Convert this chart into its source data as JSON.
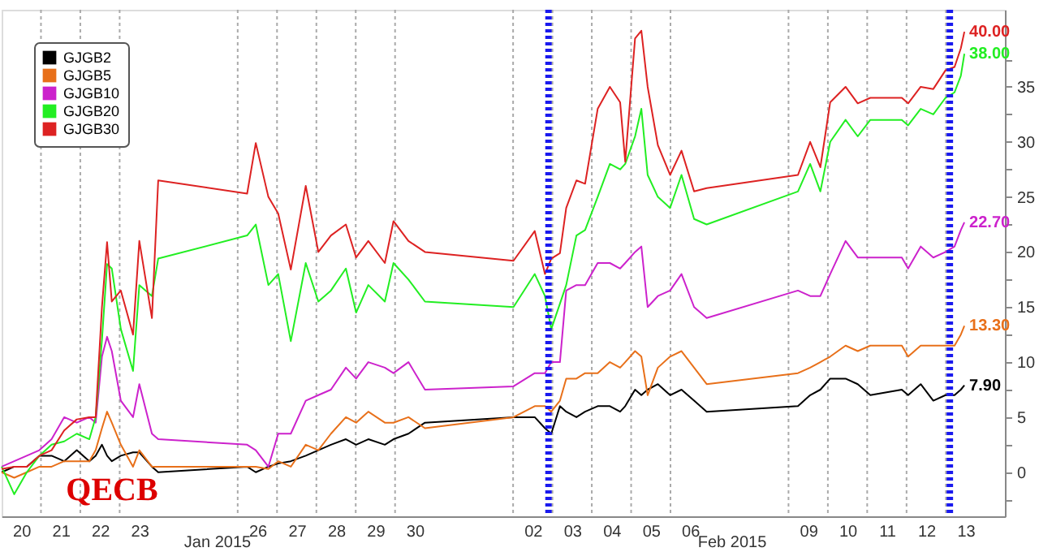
{
  "chart_data": {
    "type": "line",
    "x": [
      "2015-01-20T00:00",
      "2015-01-20T07:41",
      "2015-01-20T15:22",
      "2015-01-20T23:02",
      "2015-01-21T06:29",
      "2015-01-21T14:10",
      "2015-01-21T21:50",
      "2015-01-22T05:31",
      "2015-01-22T09:22",
      "2015-01-22T13:12",
      "2015-01-22T16:19",
      "2015-01-22T19:12",
      "2015-01-23T00:43",
      "2015-01-23T08:10",
      "2015-01-23T12:00",
      "2015-01-23T19:41",
      "2015-01-23T23:31",
      "2015-01-26T05:46",
      "2015-01-26T11:02",
      "2015-01-26T18:43",
      "2015-01-27T00:43",
      "2015-01-27T08:24",
      "2015-01-27T17:31",
      "2015-01-28T01:12",
      "2015-01-28T08:53",
      "2015-01-28T18:00",
      "2015-01-29T00:14",
      "2015-01-29T07:41",
      "2015-01-29T17:46",
      "2015-01-29T23:02",
      "2015-01-30T08:10",
      "2015-01-30T18:14",
      "2015-02-02T00:14",
      "2015-02-02T13:12",
      "2015-02-02T19:26",
      "2015-02-02T23:17",
      "2015-02-03T04:34",
      "2015-02-03T08:24",
      "2015-02-03T14:38",
      "2015-02-03T19:55",
      "2015-02-04T03:36",
      "2015-02-04T11:02",
      "2015-02-04T17:17",
      "2015-02-04T20:24",
      "2015-02-05T02:24",
      "2015-02-05T06:14",
      "2015-02-05T10:05",
      "2015-02-05T16:19",
      "2015-02-05T23:46",
      "2015-02-06T06:43",
      "2015-02-06T14:24",
      "2015-02-06T22:05",
      "2015-02-09T05:46",
      "2015-02-09T13:12",
      "2015-02-09T19:26",
      "2015-02-10T01:26",
      "2015-02-10T10:48",
      "2015-02-10T18:14",
      "2015-02-11T01:55",
      "2015-02-11T21:07",
      "2015-02-12T00:58",
      "2015-02-12T08:38",
      "2015-02-12T16:19",
      "2015-02-12T23:46",
      "2015-02-13T05:17",
      "2015-02-13T09:07",
      "2015-02-13T11:17"
    ],
    "series": [
      {
        "name": "GJGB2",
        "color": "#000000",
        "values": [
          0,
          0.5,
          0.5,
          1.5,
          1.5,
          1,
          2,
          1,
          1.5,
          2.5,
          1.5,
          1,
          1.5,
          1.8,
          1.8,
          0.5,
          0,
          0.5,
          0,
          0.5,
          0.8,
          1,
          1.5,
          2,
          2.5,
          3,
          2.5,
          3,
          2.5,
          3,
          3.5,
          4.5,
          5,
          5,
          4,
          3.5,
          6,
          5.5,
          5,
          5.5,
          6,
          6,
          5.5,
          6,
          7.5,
          7,
          7.5,
          8,
          7,
          7.5,
          6.5,
          5.5,
          6,
          7,
          7.5,
          8.5,
          8.5,
          8,
          7,
          7.5,
          7,
          8,
          6.5,
          7,
          7,
          7.5,
          7.9
        ],
        "value_labels": [
          null,
          null,
          null,
          null,
          null,
          null,
          null,
          null,
          null,
          null,
          null,
          null,
          null,
          null,
          null,
          null,
          null,
          null,
          null,
          null,
          null,
          null,
          null,
          null,
          null,
          null,
          null,
          null,
          null,
          null,
          null,
          null,
          null,
          null,
          null,
          null,
          null,
          null,
          null,
          null,
          null,
          null,
          null,
          null,
          null,
          null,
          null,
          null,
          null,
          null,
          null,
          null,
          null,
          null,
          null,
          null,
          null,
          null,
          null,
          null,
          null,
          null,
          null,
          null,
          null,
          null,
          "7.90"
        ]
      },
      {
        "name": "GJGB5",
        "color": "#e8701a",
        "values": [
          0,
          -0.5,
          0,
          0.5,
          0.5,
          1,
          1,
          1,
          2,
          4,
          5.5,
          4.5,
          2.5,
          0.5,
          2,
          0.5,
          0.5,
          0.5,
          0.5,
          0.3,
          1,
          0.5,
          2.5,
          2,
          3.5,
          5,
          4.5,
          5.5,
          4.5,
          4.5,
          5,
          4,
          5,
          6,
          6,
          5.5,
          6.5,
          8.5,
          8.5,
          9,
          9,
          10,
          9.5,
          10,
          11,
          10.5,
          7,
          9.5,
          10.5,
          11,
          9.5,
          8,
          9,
          9.5,
          10,
          10.5,
          11.5,
          11,
          11.5,
          11.5,
          10.5,
          11.5,
          11.5,
          11.5,
          11.5,
          12.5,
          13.3
        ],
        "value_labels": [
          null,
          null,
          null,
          null,
          null,
          null,
          null,
          null,
          null,
          null,
          null,
          null,
          null,
          null,
          null,
          null,
          null,
          null,
          null,
          null,
          null,
          null,
          null,
          null,
          null,
          null,
          null,
          null,
          null,
          null,
          null,
          null,
          null,
          null,
          null,
          null,
          null,
          null,
          null,
          null,
          null,
          null,
          null,
          null,
          null,
          null,
          null,
          null,
          null,
          null,
          null,
          null,
          null,
          null,
          null,
          null,
          null,
          null,
          null,
          null,
          null,
          null,
          null,
          null,
          null,
          null,
          "13.30"
        ]
      },
      {
        "name": "GJGB10",
        "color": "#cc22cc",
        "values": [
          0.5,
          1,
          1.5,
          2,
          3,
          5,
          4.5,
          5,
          4.5,
          10.5,
          12.3,
          11,
          6.5,
          5,
          8,
          3.5,
          3,
          2.5,
          2,
          0.5,
          3.5,
          3.5,
          6.5,
          7,
          7.5,
          9.5,
          8.5,
          10,
          9.5,
          9,
          10,
          7.5,
          7.8,
          9,
          9,
          10,
          10,
          16.5,
          17,
          17,
          19,
          19,
          18.5,
          19,
          20,
          20.5,
          15,
          16,
          16.5,
          18,
          15,
          14,
          16.5,
          16,
          16,
          18,
          21,
          19.5,
          19.5,
          19.5,
          18.5,
          20.5,
          19.5,
          20,
          20.5,
          22,
          22.7
        ],
        "value_labels": [
          null,
          null,
          null,
          null,
          null,
          null,
          null,
          null,
          null,
          null,
          null,
          null,
          null,
          null,
          null,
          null,
          null,
          null,
          null,
          null,
          null,
          null,
          null,
          null,
          null,
          null,
          null,
          null,
          null,
          null,
          null,
          null,
          null,
          null,
          null,
          null,
          null,
          null,
          null,
          null,
          null,
          null,
          null,
          null,
          null,
          null,
          null,
          null,
          null,
          null,
          null,
          null,
          null,
          null,
          null,
          null,
          null,
          null,
          null,
          null,
          null,
          null,
          null,
          null,
          null,
          null,
          "22.70"
        ]
      },
      {
        "name": "GJGB20",
        "color": "#22ee22",
        "values": [
          0.5,
          -2,
          0,
          1.5,
          2.5,
          2.8,
          3.5,
          3,
          5,
          12,
          18.9,
          18.5,
          13,
          9.2,
          17,
          16,
          19.4,
          21.5,
          22.5,
          17,
          18,
          11.9,
          19,
          15.5,
          16.5,
          18.5,
          14.5,
          17,
          15.5,
          19,
          17.5,
          15.5,
          15,
          18,
          16,
          13,
          15.3,
          17,
          21.5,
          22,
          25,
          28,
          27.5,
          28,
          30.5,
          33,
          27,
          25,
          24,
          27,
          23,
          22.5,
          25.5,
          28,
          25.5,
          30,
          32,
          30.5,
          32,
          32,
          31.5,
          33,
          32.5,
          34,
          34.5,
          36,
          38
        ],
        "value_labels": [
          null,
          null,
          null,
          null,
          null,
          null,
          null,
          null,
          null,
          null,
          null,
          null,
          null,
          null,
          null,
          null,
          null,
          null,
          null,
          null,
          null,
          null,
          null,
          null,
          null,
          null,
          null,
          null,
          null,
          null,
          null,
          null,
          null,
          null,
          null,
          null,
          null,
          null,
          null,
          null,
          null,
          null,
          null,
          null,
          null,
          null,
          null,
          null,
          null,
          null,
          null,
          null,
          null,
          null,
          null,
          null,
          null,
          null,
          null,
          null,
          null,
          null,
          null,
          null,
          null,
          null,
          "38.00"
        ]
      },
      {
        "name": "GJGB30",
        "color": "#dd2222",
        "values": [
          0.3,
          0.5,
          0.5,
          1.5,
          2,
          3.8,
          4.8,
          5,
          5,
          15,
          20.9,
          15.5,
          16.5,
          12.5,
          21,
          14,
          26.5,
          25.3,
          29.9,
          25,
          23.5,
          18.4,
          26,
          20,
          21.5,
          22.5,
          19.5,
          21,
          19,
          22.8,
          21,
          20,
          19.2,
          21.9,
          18,
          19.4,
          19.9,
          24,
          26.5,
          26.2,
          33,
          35,
          33.6,
          28.2,
          39.4,
          40.1,
          35,
          29.7,
          27,
          29.2,
          25.5,
          25.8,
          27,
          30,
          27.7,
          33.6,
          35,
          33.5,
          34,
          34,
          33.5,
          35,
          34.8,
          36.5,
          36.8,
          38.5,
          40
        ],
        "value_labels": [
          null,
          null,
          null,
          null,
          null,
          null,
          null,
          null,
          null,
          null,
          null,
          null,
          null,
          null,
          null,
          null,
          null,
          null,
          null,
          null,
          null,
          null,
          null,
          null,
          null,
          null,
          null,
          null,
          null,
          null,
          null,
          null,
          null,
          null,
          null,
          null,
          null,
          null,
          null,
          null,
          null,
          null,
          null,
          null,
          null,
          null,
          null,
          null,
          null,
          null,
          null,
          null,
          null,
          null,
          null,
          null,
          null,
          null,
          null,
          null,
          null,
          null,
          null,
          null,
          null,
          null,
          "40.00"
        ]
      }
    ],
    "xlim": [
      "2015-01-20T00:00",
      "2015-02-14T12:00"
    ],
    "xticks": [
      {
        "value": "2015-01-20T12:00",
        "label": "20"
      },
      {
        "value": "2015-01-21T00:00",
        "label": null
      },
      {
        "value": "2015-01-21T12:00",
        "label": "21"
      },
      {
        "value": "2015-01-22T00:00",
        "label": null
      },
      {
        "value": "2015-01-22T12:00",
        "label": "22"
      },
      {
        "value": "2015-01-23T00:00",
        "label": null
      },
      {
        "value": "2015-01-23T12:00",
        "label": "23"
      },
      {
        "value": "2015-01-26T00:00",
        "label": null
      },
      {
        "value": "2015-01-26T12:00",
        "label": "26"
      },
      {
        "value": "2015-01-27T00:00",
        "label": null
      },
      {
        "value": "2015-01-27T12:00",
        "label": "27"
      },
      {
        "value": "2015-01-28T00:00",
        "label": null
      },
      {
        "value": "2015-01-28T12:00",
        "label": "28"
      },
      {
        "value": "2015-01-29T00:00",
        "label": null
      },
      {
        "value": "2015-01-29T12:00",
        "label": "29"
      },
      {
        "value": "2015-01-30T00:00",
        "label": null
      },
      {
        "value": "2015-01-30T12:00",
        "label": "30"
      },
      {
        "value": "2015-02-02T00:00",
        "label": null
      },
      {
        "value": "2015-02-02T12:00",
        "label": "02"
      },
      {
        "value": "2015-02-03T00:00",
        "label": null
      },
      {
        "value": "2015-02-03T12:00",
        "label": "03"
      },
      {
        "value": "2015-02-04T00:00",
        "label": null
      },
      {
        "value": "2015-02-04T12:00",
        "label": "04"
      },
      {
        "value": "2015-02-05T00:00",
        "label": null
      },
      {
        "value": "2015-02-05T12:00",
        "label": "05"
      },
      {
        "value": "2015-02-06T00:00",
        "label": null
      },
      {
        "value": "2015-02-06T12:00",
        "label": "06"
      },
      {
        "value": "2015-02-09T00:00",
        "label": null
      },
      {
        "value": "2015-02-09T12:00",
        "label": "09"
      },
      {
        "value": "2015-02-10T00:00",
        "label": null
      },
      {
        "value": "2015-02-10T12:00",
        "label": "10"
      },
      {
        "value": "2015-02-11T00:00",
        "label": null
      },
      {
        "value": "2015-02-11T12:00",
        "label": "11"
      },
      {
        "value": "2015-02-12T00:00",
        "label": null
      },
      {
        "value": "2015-02-12T12:00",
        "label": "12"
      },
      {
        "value": "2015-02-13T00:00",
        "label": null
      },
      {
        "value": "2015-02-13T12:00",
        "label": "13"
      }
    ],
    "ylim": [
      -4,
      42
    ],
    "yticks": [
      {
        "value": -2.5,
        "label": null
      },
      0,
      {
        "value": 2.5,
        "label": null
      },
      5,
      {
        "value": 7.5,
        "label": null
      },
      10,
      {
        "value": 12.5,
        "label": null
      },
      15,
      {
        "value": 17.5,
        "label": null
      },
      20,
      {
        "value": 22.5,
        "label": null
      },
      25,
      {
        "value": 27.5,
        "label": null
      },
      30,
      {
        "value": 32.5,
        "label": null
      },
      35,
      {
        "value": 37.5,
        "label": null
      }
    ],
    "grid": "x",
    "legend": "top left",
    "ref_lines": [
      {
        "axis": "x",
        "value": "2015-02-02T21:36",
        "color": "#1a1aee",
        "line_style": "dotted"
      },
      {
        "axis": "x",
        "value": "2015-02-13T02:24",
        "color": "#1a1aee",
        "line_style": "dotted"
      }
    ],
    "annotations": [
      "QECB",
      "Jan 2015",
      "Feb 2015"
    ]
  }
}
